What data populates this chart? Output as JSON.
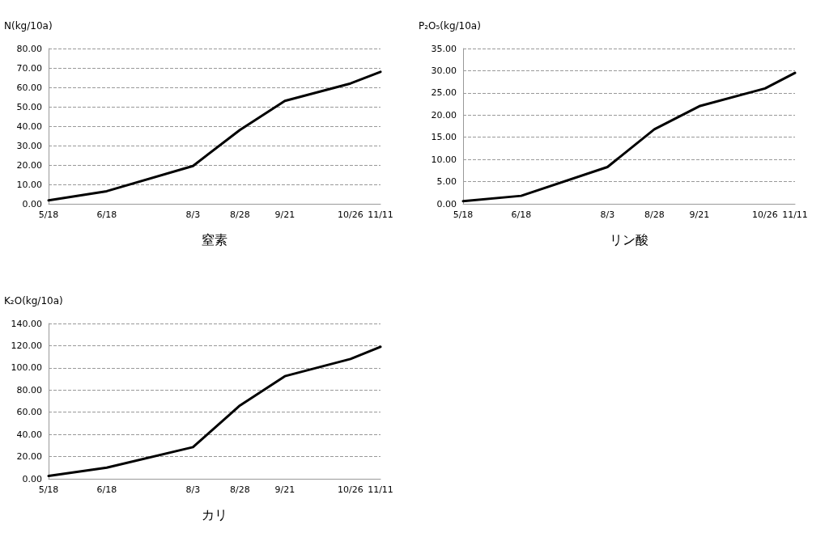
{
  "chart_data": [
    {
      "type": "line",
      "ylabel": "N(kg/10a)",
      "xlabel": "窒素",
      "x": [
        "--05-18",
        "--06-18",
        "--08-03",
        "--08-28",
        "--09-21",
        "--10-26",
        "--11-11"
      ],
      "series": [
        {
          "color": "#000000",
          "values": [
            1.8,
            6.5,
            19.5,
            38,
            53,
            62,
            68
          ]
        }
      ],
      "xlim": [
        "--05-18",
        "--11-11"
      ],
      "xticks": [
        {
          "value": "--05-18",
          "label": "5/18"
        },
        {
          "value": "--06-18",
          "label": "6/18"
        },
        {
          "value": "--08-03",
          "label": "8/3"
        },
        {
          "value": "--08-28",
          "label": "8/28"
        },
        {
          "value": "--09-21",
          "label": "9/21"
        },
        {
          "value": "--10-26",
          "label": "10/26"
        },
        {
          "value": "--11-11",
          "label": "11/11"
        }
      ],
      "ylim": [
        0,
        80
      ],
      "yticks": [
        {
          "value": 0,
          "label": "0.00"
        },
        {
          "value": 10,
          "label": "10.00"
        },
        {
          "value": 20,
          "label": "20.00"
        },
        {
          "value": 30,
          "label": "30.00"
        },
        {
          "value": 40,
          "label": "40.00"
        },
        {
          "value": 50,
          "label": "50.00"
        },
        {
          "value": 60,
          "label": "60.00"
        },
        {
          "value": 70,
          "label": "70.00"
        },
        {
          "value": 80,
          "label": "80.00"
        }
      ],
      "grid": "y",
      "marker": "none",
      "line_style": "solid"
    },
    {
      "type": "line",
      "ylabel": "P₂O₅(kg/10a)",
      "xlabel": "リン酸",
      "x": [
        "--05-18",
        "--06-18",
        "--08-03",
        "--08-28",
        "--09-21",
        "--10-26",
        "--11-11"
      ],
      "series": [
        {
          "color": "#000000",
          "values": [
            0.6,
            1.8,
            8.3,
            16.8,
            22,
            26,
            29.5
          ]
        }
      ],
      "xlim": [
        "--05-18",
        "--11-11"
      ],
      "xticks": [
        {
          "value": "--05-18",
          "label": "5/18"
        },
        {
          "value": "--06-18",
          "label": "6/18"
        },
        {
          "value": "--08-03",
          "label": "8/3"
        },
        {
          "value": "--08-28",
          "label": "8/28"
        },
        {
          "value": "--09-21",
          "label": "9/21"
        },
        {
          "value": "--10-26",
          "label": "10/26"
        },
        {
          "value": "--11-11",
          "label": "11/11"
        }
      ],
      "ylim": [
        0,
        35
      ],
      "yticks": [
        {
          "value": 0,
          "label": "0.00"
        },
        {
          "value": 5,
          "label": "5.00"
        },
        {
          "value": 10,
          "label": "10.00"
        },
        {
          "value": 15,
          "label": "15.00"
        },
        {
          "value": 20,
          "label": "20.00"
        },
        {
          "value": 25,
          "label": "25.00"
        },
        {
          "value": 30,
          "label": "30.00"
        },
        {
          "value": 35,
          "label": "35.00"
        }
      ],
      "grid": "y",
      "marker": "none",
      "line_style": "solid"
    },
    {
      "type": "line",
      "ylabel": "K₂O(kg/10a)",
      "xlabel": "カリ",
      "x": [
        "--05-18",
        "--06-18",
        "--08-03",
        "--08-28",
        "--09-21",
        "--10-26",
        "--11-11"
      ],
      "series": [
        {
          "color": "#000000",
          "values": [
            2.5,
            10,
            28.5,
            66,
            92.5,
            108,
            119
          ]
        }
      ],
      "xlim": [
        "--05-18",
        "--11-11"
      ],
      "xticks": [
        {
          "value": "--05-18",
          "label": "5/18"
        },
        {
          "value": "--06-18",
          "label": "6/18"
        },
        {
          "value": "--08-03",
          "label": "8/3"
        },
        {
          "value": "--08-28",
          "label": "8/28"
        },
        {
          "value": "--09-21",
          "label": "9/21"
        },
        {
          "value": "--10-26",
          "label": "10/26"
        },
        {
          "value": "--11-11",
          "label": "11/11"
        }
      ],
      "ylim": [
        0,
        140
      ],
      "yticks": [
        {
          "value": 0,
          "label": "0.00"
        },
        {
          "value": 20,
          "label": "20.00"
        },
        {
          "value": 40,
          "label": "40.00"
        },
        {
          "value": 60,
          "label": "60.00"
        },
        {
          "value": 80,
          "label": "80.00"
        },
        {
          "value": 100,
          "label": "100.00"
        },
        {
          "value": 120,
          "label": "120.00"
        },
        {
          "value": 140,
          "label": "140.00"
        }
      ],
      "grid": "y",
      "marker": "none",
      "line_style": "solid"
    }
  ]
}
